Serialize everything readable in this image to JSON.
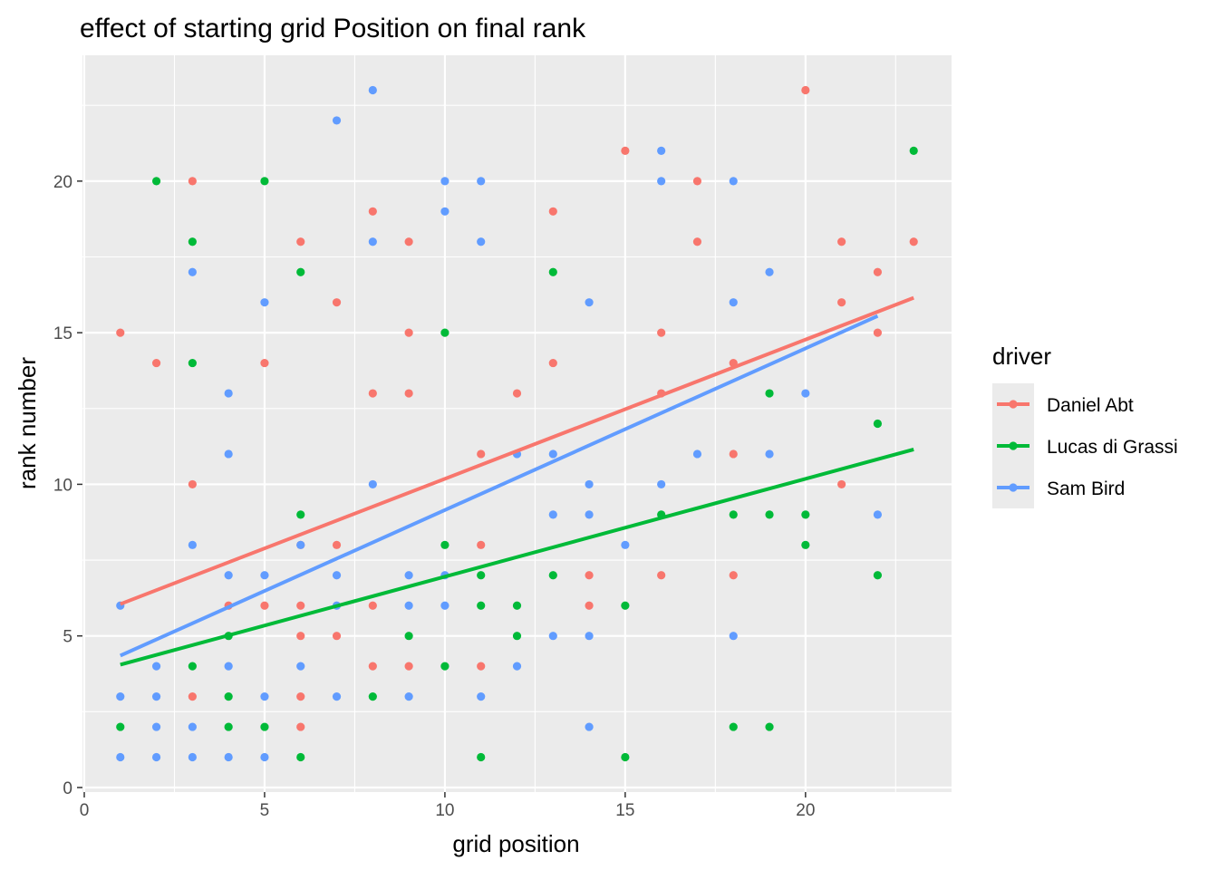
{
  "chart_data": {
    "type": "scatter",
    "title": "effect of starting grid Position on final rank",
    "xlabel": "grid position",
    "ylabel": "rank number",
    "xlim": [
      -0.05,
      24.05
    ],
    "ylim": [
      -0.15,
      24.15
    ],
    "x_ticks": [
      0,
      5,
      10,
      15,
      20
    ],
    "y_ticks": [
      0,
      5,
      10,
      15,
      20
    ],
    "grid": true,
    "legend_title": "driver",
    "legend_position": "right",
    "series": [
      {
        "name": "Daniel Abt",
        "color": "#F8766D",
        "points": [
          [
            1,
            15
          ],
          [
            2,
            14
          ],
          [
            3,
            20
          ],
          [
            3,
            10
          ],
          [
            3,
            3
          ],
          [
            4,
            6
          ],
          [
            5,
            14
          ],
          [
            5,
            6
          ],
          [
            6,
            18
          ],
          [
            6,
            8
          ],
          [
            6,
            6
          ],
          [
            6,
            5
          ],
          [
            6,
            3
          ],
          [
            6,
            2
          ],
          [
            7,
            16
          ],
          [
            7,
            8
          ],
          [
            7,
            5
          ],
          [
            8,
            19
          ],
          [
            8,
            13
          ],
          [
            8,
            6
          ],
          [
            8,
            4
          ],
          [
            9,
            18
          ],
          [
            9,
            15
          ],
          [
            9,
            13
          ],
          [
            9,
            4
          ],
          [
            11,
            11
          ],
          [
            11,
            8
          ],
          [
            11,
            4
          ],
          [
            12,
            13
          ],
          [
            13,
            19
          ],
          [
            13,
            14
          ],
          [
            14,
            7
          ],
          [
            14,
            6
          ],
          [
            15,
            21
          ],
          [
            16,
            15
          ],
          [
            16,
            13
          ],
          [
            16,
            7
          ],
          [
            17,
            20
          ],
          [
            17,
            18
          ],
          [
            18,
            14
          ],
          [
            18,
            11
          ],
          [
            18,
            7
          ],
          [
            20,
            23
          ],
          [
            21,
            18
          ],
          [
            21,
            16
          ],
          [
            21,
            10
          ],
          [
            22,
            17
          ],
          [
            22,
            15
          ],
          [
            23,
            18
          ]
        ],
        "trend": {
          "x": [
            1,
            23
          ],
          "y": [
            6.05,
            16.15
          ]
        }
      },
      {
        "name": "Lucas di Grassi",
        "color": "#00BA38",
        "points": [
          [
            1,
            2
          ],
          [
            2,
            20
          ],
          [
            3,
            18
          ],
          [
            3,
            14
          ],
          [
            3,
            4
          ],
          [
            4,
            3
          ],
          [
            4,
            2
          ],
          [
            4,
            5
          ],
          [
            5,
            20
          ],
          [
            5,
            2
          ],
          [
            6,
            17
          ],
          [
            6,
            9
          ],
          [
            6,
            1
          ],
          [
            8,
            3
          ],
          [
            9,
            5
          ],
          [
            10,
            15
          ],
          [
            10,
            8
          ],
          [
            10,
            4
          ],
          [
            11,
            7
          ],
          [
            11,
            6
          ],
          [
            11,
            1
          ],
          [
            12,
            6
          ],
          [
            12,
            5
          ],
          [
            13,
            17
          ],
          [
            13,
            7
          ],
          [
            15,
            6
          ],
          [
            15,
            1
          ],
          [
            16,
            9
          ],
          [
            18,
            9
          ],
          [
            18,
            2
          ],
          [
            19,
            13
          ],
          [
            19,
            9
          ],
          [
            19,
            2
          ],
          [
            20,
            9
          ],
          [
            20,
            8
          ],
          [
            22,
            12
          ],
          [
            22,
            7
          ],
          [
            23,
            21
          ]
        ],
        "trend": {
          "x": [
            1,
            23
          ],
          "y": [
            4.05,
            11.15
          ]
        }
      },
      {
        "name": "Sam Bird",
        "color": "#619CFF",
        "points": [
          [
            1,
            6
          ],
          [
            1,
            3
          ],
          [
            1,
            1
          ],
          [
            2,
            4
          ],
          [
            2,
            3
          ],
          [
            2,
            2
          ],
          [
            2,
            1
          ],
          [
            3,
            17
          ],
          [
            3,
            8
          ],
          [
            3,
            2
          ],
          [
            3,
            1
          ],
          [
            4,
            13
          ],
          [
            4,
            11
          ],
          [
            4,
            7
          ],
          [
            4,
            4
          ],
          [
            4,
            1
          ],
          [
            5,
            16
          ],
          [
            5,
            7
          ],
          [
            5,
            3
          ],
          [
            5,
            1
          ],
          [
            6,
            8
          ],
          [
            6,
            4
          ],
          [
            7,
            22
          ],
          [
            7,
            7
          ],
          [
            7,
            6
          ],
          [
            7,
            3
          ],
          [
            8,
            23
          ],
          [
            8,
            18
          ],
          [
            8,
            10
          ],
          [
            9,
            7
          ],
          [
            9,
            6
          ],
          [
            9,
            3
          ],
          [
            10,
            20
          ],
          [
            10,
            19
          ],
          [
            10,
            7
          ],
          [
            10,
            6
          ],
          [
            11,
            20
          ],
          [
            11,
            18
          ],
          [
            11,
            3
          ],
          [
            12,
            11
          ],
          [
            12,
            4
          ],
          [
            13,
            11
          ],
          [
            13,
            9
          ],
          [
            13,
            5
          ],
          [
            14,
            16
          ],
          [
            14,
            10
          ],
          [
            14,
            9
          ],
          [
            14,
            5
          ],
          [
            14,
            2
          ],
          [
            15,
            8
          ],
          [
            16,
            21
          ],
          [
            16,
            20
          ],
          [
            16,
            10
          ],
          [
            17,
            11
          ],
          [
            18,
            20
          ],
          [
            18,
            16
          ],
          [
            18,
            5
          ],
          [
            19,
            17
          ],
          [
            19,
            11
          ],
          [
            20,
            13
          ],
          [
            22,
            9
          ]
        ],
        "trend": {
          "x": [
            1,
            22
          ],
          "y": [
            4.35,
            15.55
          ]
        }
      }
    ]
  }
}
